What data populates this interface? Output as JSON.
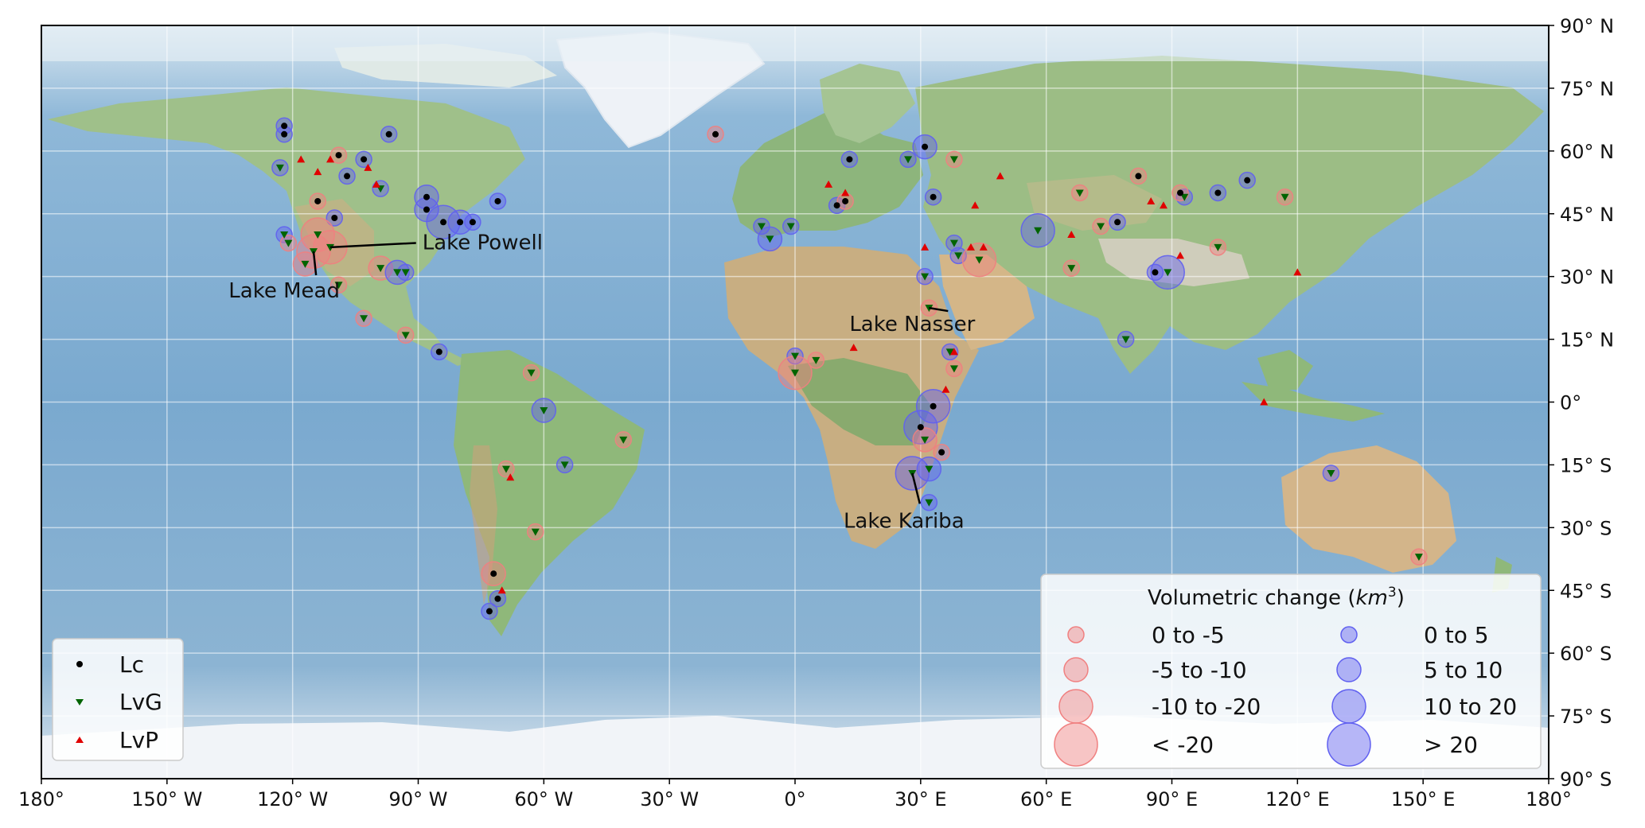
{
  "chart_data": {
    "type": "scatter",
    "title": "",
    "projection": "plate-carree",
    "xlim": [
      -180,
      180
    ],
    "ylim": [
      -90,
      90
    ],
    "grid": true,
    "x_ticks": [
      {
        "lon": -180,
        "label": "180°"
      },
      {
        "lon": -150,
        "label": "150° W"
      },
      {
        "lon": -120,
        "label": "120° W"
      },
      {
        "lon": -90,
        "label": "90° W"
      },
      {
        "lon": -60,
        "label": "60° W"
      },
      {
        "lon": -30,
        "label": "30° W"
      },
      {
        "lon": 0,
        "label": "0°"
      },
      {
        "lon": 30,
        "label": "30° E"
      },
      {
        "lon": 60,
        "label": "60° E"
      },
      {
        "lon": 90,
        "label": "90° E"
      },
      {
        "lon": 120,
        "label": "120° E"
      },
      {
        "lon": 150,
        "label": "150° E"
      },
      {
        "lon": 180,
        "label": "180°"
      }
    ],
    "y_ticks": [
      {
        "lat": 90,
        "label": "90° N"
      },
      {
        "lat": 75,
        "label": "75° N"
      },
      {
        "lat": 60,
        "label": "60° N"
      },
      {
        "lat": 45,
        "label": "45° N"
      },
      {
        "lat": 30,
        "label": "30° N"
      },
      {
        "lat": 15,
        "label": "15° N"
      },
      {
        "lat": 0,
        "label": "0°"
      },
      {
        "lat": -15,
        "label": "15° S"
      },
      {
        "lat": -30,
        "label": "30° S"
      },
      {
        "lat": -45,
        "label": "45° S"
      },
      {
        "lat": -60,
        "label": "60° S"
      },
      {
        "lat": -75,
        "label": "75° S"
      },
      {
        "lat": -90,
        "label": "90° S"
      }
    ],
    "type_legend": [
      {
        "label": "Lc",
        "marker": "dot",
        "color": "#000000"
      },
      {
        "label": "LvG",
        "marker": "triangle-down",
        "color": "#006400"
      },
      {
        "label": "LvP",
        "marker": "triangle-up",
        "color": "#e00000"
      }
    ],
    "size_legend": {
      "title": "Volumetric change (",
      "title_unit": "km",
      "title_exp": "3",
      "title_close": ")",
      "decrease": [
        {
          "label": "0 to -5",
          "bin": 1
        },
        {
          "label": "-5 to -10",
          "bin": 2
        },
        {
          "label": "-10 to -20",
          "bin": 3
        },
        {
          "label": "< -20",
          "bin": 4
        }
      ],
      "increase": [
        {
          "label": "0 to 5",
          "bin": 1
        },
        {
          "label": "5 to 10",
          "bin": 2
        },
        {
          "label": "10 to 20",
          "bin": 3
        },
        {
          "label": "> 20",
          "bin": 4
        }
      ],
      "decrease_color": "#f08080",
      "increase_color": "#6060f0"
    },
    "annotations": [
      {
        "text": "Lake Powell",
        "lon": -111,
        "lat": 37,
        "text_lon": -89,
        "text_lat": 36.5
      },
      {
        "text": "Lake Mead",
        "lon": -115,
        "lat": 36,
        "text_lon": -122,
        "text_lat": 25
      },
      {
        "text": "Lake Nasser",
        "lon": 32,
        "lat": 22.5,
        "text_lon": 28,
        "text_lat": 17
      },
      {
        "text": "Lake Kariba",
        "lon": 28,
        "lat": -17,
        "text_lon": 26,
        "text_lat": -30
      }
    ],
    "lakes": [
      {
        "lon": -122,
        "lat": 64,
        "marker": "Lc",
        "change": "+",
        "bin": 1
      },
      {
        "lon": -122,
        "lat": 66,
        "marker": "Lc",
        "change": "+",
        "bin": 1
      },
      {
        "lon": -97,
        "lat": 64,
        "marker": "Lc",
        "change": "+",
        "bin": 1
      },
      {
        "lon": -123,
        "lat": 56,
        "marker": "LvG",
        "change": "+",
        "bin": 1
      },
      {
        "lon": -109,
        "lat": 59,
        "marker": "Lc",
        "change": "-",
        "bin": 1
      },
      {
        "lon": -103,
        "lat": 58,
        "marker": "Lc",
        "change": "+",
        "bin": 1
      },
      {
        "lon": -107,
        "lat": 54,
        "marker": "Lc",
        "change": "+",
        "bin": 1
      },
      {
        "lon": -99,
        "lat": 51,
        "marker": "LvG",
        "change": "+",
        "bin": 1
      },
      {
        "lon": -114,
        "lat": 48,
        "marker": "Lc",
        "change": "-",
        "bin": 1
      },
      {
        "lon": -110,
        "lat": 44,
        "marker": "Lc",
        "change": "+",
        "bin": 1
      },
      {
        "lon": -88,
        "lat": 49,
        "marker": "Lc",
        "change": "+",
        "bin": 2
      },
      {
        "lon": -88,
        "lat": 46,
        "marker": "Lc",
        "change": "+",
        "bin": 2
      },
      {
        "lon": -84,
        "lat": 43,
        "marker": "Lc",
        "change": "+",
        "bin": 3
      },
      {
        "lon": -80,
        "lat": 43,
        "marker": "Lc",
        "change": "+",
        "bin": 2
      },
      {
        "lon": -77,
        "lat": 43,
        "marker": "Lc",
        "change": "+",
        "bin": 1
      },
      {
        "lon": -71,
        "lat": 48,
        "marker": "Lc",
        "change": "+",
        "bin": 1
      },
      {
        "lon": -122,
        "lat": 40,
        "marker": "LvG",
        "change": "+",
        "bin": 1
      },
      {
        "lon": -121,
        "lat": 38,
        "marker": "LvG",
        "change": "-",
        "bin": 1
      },
      {
        "lon": -114,
        "lat": 40,
        "marker": "LvG",
        "change": "-",
        "bin": 3
      },
      {
        "lon": -111,
        "lat": 37,
        "marker": "LvG",
        "change": "-",
        "bin": 3
      },
      {
        "lon": -115,
        "lat": 36,
        "marker": "LvG",
        "change": "-",
        "bin": 3
      },
      {
        "lon": -117,
        "lat": 33,
        "marker": "LvG",
        "change": "-",
        "bin": 2
      },
      {
        "lon": -109,
        "lat": 28,
        "marker": "LvG",
        "change": "-",
        "bin": 1
      },
      {
        "lon": -99,
        "lat": 32,
        "marker": "LvG",
        "change": "-",
        "bin": 2
      },
      {
        "lon": -95,
        "lat": 31,
        "marker": "LvG",
        "change": "+",
        "bin": 2
      },
      {
        "lon": -93,
        "lat": 31,
        "marker": "LvG",
        "change": "+",
        "bin": 1
      },
      {
        "lon": -103,
        "lat": 20,
        "marker": "LvG",
        "change": "-",
        "bin": 1
      },
      {
        "lon": -93,
        "lat": 16,
        "marker": "LvG",
        "change": "-",
        "bin": 1
      },
      {
        "lon": -85,
        "lat": 12,
        "marker": "Lc",
        "change": "+",
        "bin": 1
      },
      {
        "lon": -63,
        "lat": 7,
        "marker": "LvG",
        "change": "-",
        "bin": 1
      },
      {
        "lon": -60,
        "lat": -2,
        "marker": "LvG",
        "change": "+",
        "bin": 2
      },
      {
        "lon": -55,
        "lat": -15,
        "marker": "LvG",
        "change": "+",
        "bin": 1
      },
      {
        "lon": -41,
        "lat": -9,
        "marker": "LvG",
        "change": "-",
        "bin": 1
      },
      {
        "lon": -69,
        "lat": -16,
        "marker": "LvG",
        "change": "-",
        "bin": 1
      },
      {
        "lon": -62,
        "lat": -31,
        "marker": "LvG",
        "change": "-",
        "bin": 1
      },
      {
        "lon": -72,
        "lat": -41,
        "marker": "Lc",
        "change": "-",
        "bin": 2
      },
      {
        "lon": -71,
        "lat": -47,
        "marker": "Lc",
        "change": "+",
        "bin": 1
      },
      {
        "lon": -73,
        "lat": -50,
        "marker": "Lc",
        "change": "+",
        "bin": 1
      },
      {
        "lon": -19,
        "lat": 64,
        "marker": "Lc",
        "change": "-",
        "bin": 1
      },
      {
        "lon": -8,
        "lat": 42,
        "marker": "LvG",
        "change": "+",
        "bin": 1
      },
      {
        "lon": -6,
        "lat": 39,
        "marker": "LvG",
        "change": "+",
        "bin": 2
      },
      {
        "lon": -1,
        "lat": 42,
        "marker": "LvG",
        "change": "+",
        "bin": 1
      },
      {
        "lon": 13,
        "lat": 58,
        "marker": "Lc",
        "change": "+",
        "bin": 1
      },
      {
        "lon": 10,
        "lat": 47,
        "marker": "Lc",
        "change": "+",
        "bin": 1
      },
      {
        "lon": 12,
        "lat": 48,
        "marker": "Lc",
        "change": "-",
        "bin": 1
      },
      {
        "lon": 27,
        "lat": 58,
        "marker": "LvG",
        "change": "+",
        "bin": 1
      },
      {
        "lon": 31,
        "lat": 61,
        "marker": "Lc",
        "change": "+",
        "bin": 2
      },
      {
        "lon": 38,
        "lat": 58,
        "marker": "LvG",
        "change": "-",
        "bin": 1
      },
      {
        "lon": 33,
        "lat": 49,
        "marker": "Lc",
        "change": "+",
        "bin": 1
      },
      {
        "lon": 38,
        "lat": 38,
        "marker": "LvG",
        "change": "+",
        "bin": 1
      },
      {
        "lon": 39,
        "lat": 35,
        "marker": "LvG",
        "change": "+",
        "bin": 1
      },
      {
        "lon": 44,
        "lat": 34,
        "marker": "LvG",
        "change": "-",
        "bin": 3
      },
      {
        "lon": 58,
        "lat": 41,
        "marker": "LvG",
        "change": "+",
        "bin": 3
      },
      {
        "lon": 66,
        "lat": 32,
        "marker": "LvG",
        "change": "-",
        "bin": 1
      },
      {
        "lon": 68,
        "lat": 50,
        "marker": "LvG",
        "change": "-",
        "bin": 1
      },
      {
        "lon": 73,
        "lat": 42,
        "marker": "LvG",
        "change": "-",
        "bin": 1
      },
      {
        "lon": 77,
        "lat": 43,
        "marker": "Lc",
        "change": "+",
        "bin": 1
      },
      {
        "lon": 82,
        "lat": 54,
        "marker": "Lc",
        "change": "-",
        "bin": 1
      },
      {
        "lon": 93,
        "lat": 49,
        "marker": "LvG",
        "change": "+",
        "bin": 1
      },
      {
        "lon": 92,
        "lat": 50,
        "marker": "Lc",
        "change": "-",
        "bin": 1
      },
      {
        "lon": 101,
        "lat": 50,
        "marker": "Lc",
        "change": "+",
        "bin": 1
      },
      {
        "lon": 108,
        "lat": 53,
        "marker": "Lc",
        "change": "+",
        "bin": 1
      },
      {
        "lon": 117,
        "lat": 49,
        "marker": "LvG",
        "change": "-",
        "bin": 1
      },
      {
        "lon": 101,
        "lat": 37,
        "marker": "LvG",
        "change": "-",
        "bin": 1
      },
      {
        "lon": 89,
        "lat": 31,
        "marker": "LvG",
        "change": "+",
        "bin": 3
      },
      {
        "lon": 86,
        "lat": 31,
        "marker": "Lc",
        "change": "+",
        "bin": 1
      },
      {
        "lon": 79,
        "lat": 15,
        "marker": "LvG",
        "change": "+",
        "bin": 1
      },
      {
        "lon": 31,
        "lat": 30,
        "marker": "LvG",
        "change": "+",
        "bin": 1
      },
      {
        "lon": 32,
        "lat": 22.5,
        "marker": "LvG",
        "change": "-",
        "bin": 1
      },
      {
        "lon": 37,
        "lat": 12,
        "marker": "LvG",
        "change": "+",
        "bin": 1
      },
      {
        "lon": 38,
        "lat": 8,
        "marker": "LvG",
        "change": "-",
        "bin": 1
      },
      {
        "lon": 0,
        "lat": 11,
        "marker": "LvG",
        "change": "+",
        "bin": 1
      },
      {
        "lon": 0,
        "lat": 7,
        "marker": "LvG",
        "change": "-",
        "bin": 3
      },
      {
        "lon": 5,
        "lat": 10,
        "marker": "LvG",
        "change": "-",
        "bin": 1
      },
      {
        "lon": 33,
        "lat": -1,
        "marker": "Lc",
        "change": "+",
        "bin": 3
      },
      {
        "lon": 30,
        "lat": -6,
        "marker": "Lc",
        "change": "+",
        "bin": 3
      },
      {
        "lon": 31,
        "lat": -9,
        "marker": "LvG",
        "change": "-",
        "bin": 2
      },
      {
        "lon": 35,
        "lat": -12,
        "marker": "Lc",
        "change": "-",
        "bin": 1
      },
      {
        "lon": 28,
        "lat": -17,
        "marker": "LvG",
        "change": "+",
        "bin": 3
      },
      {
        "lon": 32,
        "lat": -16,
        "marker": "LvG",
        "change": "+",
        "bin": 2
      },
      {
        "lon": 32,
        "lat": -24,
        "marker": "LvG",
        "change": "+",
        "bin": 1
      },
      {
        "lon": 128,
        "lat": -17,
        "marker": "LvG",
        "change": "+",
        "bin": 1
      },
      {
        "lon": 149,
        "lat": -37,
        "marker": "LvG",
        "change": "-",
        "bin": 1
      }
    ],
    "lvp_points": [
      {
        "lon": -118,
        "lat": 58
      },
      {
        "lon": -114,
        "lat": 55
      },
      {
        "lon": -111,
        "lat": 58
      },
      {
        "lon": -102,
        "lat": 56
      },
      {
        "lon": -100,
        "lat": 52
      },
      {
        "lon": -68,
        "lat": -18
      },
      {
        "lon": -70,
        "lat": -45
      },
      {
        "lon": 8,
        "lat": 52
      },
      {
        "lon": 12,
        "lat": 50
      },
      {
        "lon": 14,
        "lat": 13
      },
      {
        "lon": 43,
        "lat": 47
      },
      {
        "lon": 49,
        "lat": 54
      },
      {
        "lon": 31,
        "lat": 37
      },
      {
        "lon": 42,
        "lat": 37
      },
      {
        "lon": 45,
        "lat": 37
      },
      {
        "lon": 66,
        "lat": 40
      },
      {
        "lon": 85,
        "lat": 48
      },
      {
        "lon": 88,
        "lat": 47
      },
      {
        "lon": 92,
        "lat": 35
      },
      {
        "lon": 120,
        "lat": 31
      },
      {
        "lon": 112,
        "lat": 0
      },
      {
        "lon": 36,
        "lat": 3
      },
      {
        "lon": 38,
        "lat": 12
      }
    ]
  }
}
